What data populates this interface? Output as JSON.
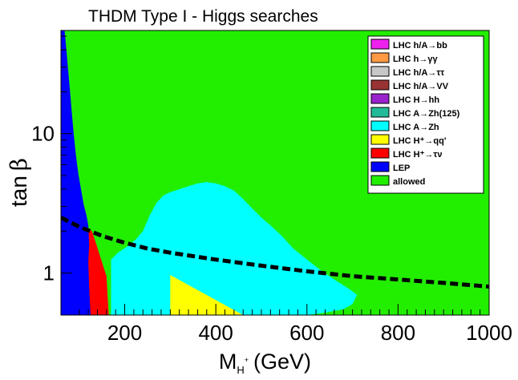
{
  "chart_data": {
    "type": "heatmap",
    "title": "THDM Type I - Higgs searches",
    "xlabel_main": "M",
    "xlabel_sub": "H",
    "xlabel_sup": "+",
    "xlabel_unit": "(GeV)",
    "ylabel_main": "tan",
    "ylabel_greek": "β",
    "xlim": [
      60,
      1000
    ],
    "ylim": [
      0.5,
      55
    ],
    "yscale": "log",
    "x_ticks": [
      200,
      400,
      600,
      800,
      1000
    ],
    "x_tick_labels": [
      "200",
      "400",
      "600",
      "800",
      "1000"
    ],
    "y_ticks": [
      1,
      10
    ],
    "y_tick_labels": [
      "1",
      "10"
    ],
    "legend": [
      {
        "label": "LHC h/A→bb",
        "color": "#ee22ee"
      },
      {
        "label": "LHC h→γγ",
        "color": "#ff9944"
      },
      {
        "label": "LHC h/A→ττ",
        "color": "#c8c8c8"
      },
      {
        "label": "LHC h/A→VV",
        "color": "#993333"
      },
      {
        "label": "LHC H→hh",
        "color": "#9922cc"
      },
      {
        "label": "LHC A→Zh(125)",
        "color": "#22bb99"
      },
      {
        "label": "LHC A→Zh",
        "color": "#00ffff"
      },
      {
        "label": "LHC H⁺→qq'",
        "color": "#ffff00"
      },
      {
        "label": "LHC H⁺→τν",
        "color": "#ff0000"
      },
      {
        "label": "LEP",
        "color": "#0000ff"
      },
      {
        "label": "allowed",
        "color": "#22ee00"
      }
    ],
    "regions": [
      {
        "name": "allowed",
        "color": "#22ee00",
        "points": [
          [
            60,
            55
          ],
          [
            1000,
            55
          ],
          [
            1000,
            0.5
          ],
          [
            60,
            0.5
          ]
        ]
      },
      {
        "name": "LHC A→Zh",
        "color": "#00ffff",
        "points": [
          [
            170,
            0.5
          ],
          [
            170,
            1.25
          ],
          [
            185,
            1.4
          ],
          [
            205,
            1.55
          ],
          [
            225,
            1.75
          ],
          [
            240,
            2.0
          ],
          [
            255,
            2.6
          ],
          [
            270,
            3.2
          ],
          [
            285,
            3.6
          ],
          [
            300,
            3.8
          ],
          [
            320,
            4.0
          ],
          [
            340,
            4.2
          ],
          [
            360,
            4.4
          ],
          [
            380,
            4.5
          ],
          [
            400,
            4.4
          ],
          [
            420,
            4.2
          ],
          [
            440,
            3.9
          ],
          [
            460,
            3.4
          ],
          [
            480,
            2.9
          ],
          [
            500,
            2.5
          ],
          [
            520,
            2.2
          ],
          [
            545,
            1.85
          ],
          [
            570,
            1.5
          ],
          [
            600,
            1.25
          ],
          [
            630,
            1.05
          ],
          [
            660,
            0.9
          ],
          [
            690,
            0.78
          ],
          [
            710,
            0.7
          ],
          [
            700,
            0.6
          ],
          [
            680,
            0.55
          ],
          [
            640,
            0.52
          ],
          [
            600,
            0.5
          ]
        ]
      },
      {
        "name": "LHC H⁺→qq'",
        "color": "#ffff00",
        "points": [
          [
            300,
            0.5
          ],
          [
            300,
            0.97
          ],
          [
            460,
            0.5
          ]
        ]
      },
      {
        "name": "LHC H⁺→τν",
        "color": "#ff0000",
        "points": [
          [
            118,
            0.5
          ],
          [
            118,
            2.1
          ],
          [
            128,
            2.0
          ],
          [
            138,
            1.6
          ],
          [
            150,
            1.2
          ],
          [
            160,
            0.95
          ],
          [
            165,
            0.5
          ]
        ]
      },
      {
        "name": "LEP",
        "color": "#0000ff",
        "points": [
          [
            60,
            0.5
          ],
          [
            60,
            55
          ],
          [
            68,
            55
          ],
          [
            72,
            40
          ],
          [
            76,
            28
          ],
          [
            80,
            20
          ],
          [
            84,
            14
          ],
          [
            88,
            10
          ],
          [
            93,
            7
          ],
          [
            98,
            5.2
          ],
          [
            104,
            4.0
          ],
          [
            110,
            3.1
          ],
          [
            116,
            2.6
          ],
          [
            120,
            2.2
          ],
          [
            122,
            1.6
          ],
          [
            120,
            1.2
          ],
          [
            122,
            0.8
          ],
          [
            125,
            0.5
          ]
        ]
      }
    ],
    "boundary_line": {
      "style": "dashed",
      "color": "#000000",
      "x": [
        60,
        100,
        150,
        200,
        250,
        300,
        400,
        500,
        600,
        700,
        800,
        900,
        1000
      ],
      "y": [
        2.5,
        2.15,
        1.85,
        1.65,
        1.5,
        1.4,
        1.25,
        1.13,
        1.03,
        0.95,
        0.9,
        0.85,
        0.8
      ]
    }
  }
}
